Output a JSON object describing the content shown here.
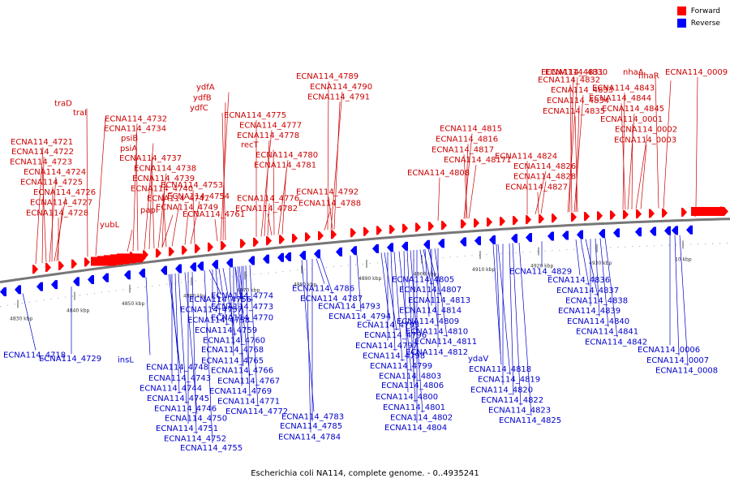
{
  "title": "Escherichia coli NA114, complete genome. - 0..4935241",
  "legend": {
    "forward": {
      "label": "Forward",
      "color": "#ff0000"
    },
    "reverse": {
      "label": "Reverse",
      "color": "#0000ff"
    }
  },
  "ticks": [
    "4830 kbp",
    "4840 kbp",
    "4850 kbp",
    "4860 kbp",
    "4870 kbp",
    "4880 kbp",
    "4890 kbp",
    "4900 kbp",
    "4910 kbp",
    "4920 kbp",
    "4930 kbp",
    "10 kbp"
  ],
  "forward_genes": [
    {
      "label": "ECNA114_4782",
      "gx": 335
    },
    {
      "label": "ECNA114_4776",
      "gx": 330
    },
    {
      "label": "ECNA114_4747",
      "gx": 212
    },
    {
      "label": "ECNA114_4740",
      "gx": 205
    },
    {
      "label": "ECNA114_4739",
      "gx": 200
    },
    {
      "label": "ECNA114_4738",
      "gx": 195
    },
    {
      "label": "ECNA114_4737",
      "gx": 190
    },
    {
      "label": "psiA",
      "gx": 184
    },
    {
      "label": "psiB",
      "gx": 178
    },
    {
      "label": "ECNA114_4734",
      "gx": 170
    },
    {
      "label": "ECNA114_4732",
      "gx": 164
    },
    {
      "label": "traI",
      "gx": 118
    },
    {
      "label": "traD",
      "gx": 108
    },
    {
      "label": "yubL",
      "gx": 157
    },
    {
      "label": "papI",
      "gx": 200
    },
    {
      "label": "ECNA114_4728",
      "gx": 72
    },
    {
      "label": "ECNA114_4727",
      "gx": 70
    },
    {
      "label": "ECNA114_4726",
      "gx": 67
    },
    {
      "label": "ECNA114_4725",
      "gx": 64
    },
    {
      "label": "ECNA114_4724",
      "gx": 61
    },
    {
      "label": "ECNA114_4723",
      "gx": 57
    },
    {
      "label": "ECNA114_4722",
      "gx": 52
    },
    {
      "label": "ECNA114_4721",
      "gx": 44
    },
    {
      "label": "ydfC",
      "gx": 278
    },
    {
      "label": "ydfB",
      "gx": 275
    },
    {
      "label": "ydfA",
      "gx": 272
    },
    {
      "label": "ECNA114_4761",
      "gx": 268
    },
    {
      "label": "ECNA114_4749",
      "gx": 228
    },
    {
      "label": "ECNA114_4754",
      "gx": 235
    },
    {
      "label": "ECNA114_4753",
      "gx": 240
    },
    {
      "label": "ECNA114_4781",
      "gx": 348
    },
    {
      "label": "ECNA114_4780",
      "gx": 343
    },
    {
      "label": "recT",
      "gx": 338
    },
    {
      "label": "ECNA114_4778",
      "gx": 326
    },
    {
      "label": "ECNA114_4777",
      "gx": 322
    },
    {
      "label": "ECNA114_4775",
      "gx": 316
    },
    {
      "label": "ECNA114_4791",
      "gx": 412
    },
    {
      "label": "ECNA114_4790",
      "gx": 408
    },
    {
      "label": "ECNA114_4789",
      "gx": 404
    },
    {
      "label": "ECNA114_4788",
      "gx": 400
    },
    {
      "label": "ECNA114_4792",
      "gx": 410
    },
    {
      "label": "ECNA114_4808",
      "gx": 540
    },
    {
      "label": "ECNA114_48171",
      "gx": 578
    },
    {
      "label": "ECNA114_4817",
      "gx": 576
    },
    {
      "label": "ECNA114_4816",
      "gx": 574
    },
    {
      "label": "ECNA114_4815",
      "gx": 572
    },
    {
      "label": "ECNA114_4835",
      "gx": 712
    },
    {
      "label": "ECNA114_4834",
      "gx": 710
    },
    {
      "label": "ECNA114_4833",
      "gx": 708
    },
    {
      "label": "ECNA114_4832",
      "gx": 705
    },
    {
      "label": "ECNA114_4831",
      "gx": 702
    },
    {
      "label": "ECNA114_4830",
      "gx": 700
    },
    {
      "label": "ECNA114_4827",
      "gx": 664
    },
    {
      "label": "ECNA114_4828",
      "gx": 667
    },
    {
      "label": "ECNA114_4826",
      "gx": 660
    },
    {
      "label": "ECNA114_4824",
      "gx": 650
    },
    {
      "label": "ECNA114_0003",
      "gx": 790
    },
    {
      "label": "ECNA114_0002",
      "gx": 784
    },
    {
      "label": "ECNA114_0001",
      "gx": 779
    },
    {
      "label": "ECNA114_4845",
      "gx": 774
    },
    {
      "label": "ECNA114_4844",
      "gx": 771
    },
    {
      "label": "ECNA114_4843",
      "gx": 768
    },
    {
      "label": "nhaR",
      "gx": 818
    },
    {
      "label": "nhaA",
      "gx": 812
    },
    {
      "label": "ECNA114_0009",
      "gx": 858
    }
  ],
  "reverse_genes": [
    {
      "label": "ECNA114_4774",
      "gx": 300
    },
    {
      "label": "ECNA114_4773",
      "gx": 295
    },
    {
      "label": "ECNA114_4770",
      "gx": 290
    },
    {
      "label": "ECNA114_4718",
      "gx": 28
    },
    {
      "label": "ECNA114_4729",
      "gx": 88
    },
    {
      "label": "insL",
      "gx": 180
    },
    {
      "label": "ECNA114_4748",
      "gx": 210
    },
    {
      "label": "ECNA114_4743",
      "gx": 208
    },
    {
      "label": "ECNA114_4744",
      "gx": 212
    },
    {
      "label": "ECNA114_4745",
      "gx": 216
    },
    {
      "label": "ECNA114_4746",
      "gx": 220
    },
    {
      "label": "ECNA114_4750",
      "gx": 228
    },
    {
      "label": "ECNA114_4751",
      "gx": 232
    },
    {
      "label": "ECNA114_4752",
      "gx": 237
    },
    {
      "label": "ECNA114_4755",
      "gx": 252
    },
    {
      "label": "ECNA114_4756",
      "gx": 258
    },
    {
      "label": "ECNA114_4757",
      "gx": 262
    },
    {
      "label": "ECNA114_4758",
      "gx": 266
    },
    {
      "label": "ECNA114_4759",
      "gx": 270
    },
    {
      "label": "ECNA114_4760",
      "gx": 275
    },
    {
      "label": "ECNA114_4768",
      "gx": 288
    },
    {
      "label": "ECNA114_4765",
      "gx": 283
    },
    {
      "label": "ECNA114_4766",
      "gx": 290
    },
    {
      "label": "ECNA114_4767",
      "gx": 293
    },
    {
      "label": "ECNA114_4769",
      "gx": 298
    },
    {
      "label": "ECNA114_4771",
      "gx": 303
    },
    {
      "label": "ECNA114_4772",
      "gx": 308
    },
    {
      "label": "ECNA114_4783",
      "gx": 372
    },
    {
      "label": "ECNA114_4785",
      "gx": 385
    },
    {
      "label": "ECNA114_4784",
      "gx": 378
    },
    {
      "label": "ECNA114_4786",
      "gx": 390
    },
    {
      "label": "ECNA114_4787",
      "gx": 395
    },
    {
      "label": "ECNA114_4793",
      "gx": 432
    },
    {
      "label": "ECNA114_4794",
      "gx": 440
    },
    {
      "label": "ECNA114_4795",
      "gx": 470
    },
    {
      "label": "ECNA114_4796",
      "gx": 474
    },
    {
      "label": "ECNA114_4797",
      "gx": 478
    },
    {
      "label": "ECNA114_4798",
      "gx": 482
    },
    {
      "label": "ECNA114_4799",
      "gx": 486
    },
    {
      "label": "ECNA114_4803",
      "gx": 492
    },
    {
      "label": "ECNA114_4806",
      "gx": 510
    },
    {
      "label": "ECNA114_4800",
      "gx": 498
    },
    {
      "label": "ECNA114_4801",
      "gx": 502
    },
    {
      "label": "ECNA114_4802",
      "gx": 506
    },
    {
      "label": "ECNA114_4804",
      "gx": 514
    },
    {
      "label": "ECNA114_4805",
      "gx": 518
    },
    {
      "label": "ECNA114_4807",
      "gx": 522
    },
    {
      "label": "ECNA114_4813",
      "gx": 528
    },
    {
      "label": "ECNA114_4814",
      "gx": 532
    },
    {
      "label": "ECNA114_4809",
      "gx": 524
    },
    {
      "label": "ECNA114_4810",
      "gx": 530
    },
    {
      "label": "ECNA114_4811",
      "gx": 536
    },
    {
      "label": "ECNA114_4812",
      "gx": 540
    },
    {
      "label": "ydaV",
      "gx": 612
    },
    {
      "label": "ECNA114_4818",
      "gx": 608
    },
    {
      "label": "ECNA114_4819",
      "gx": 614
    },
    {
      "label": "ECNA114_4820",
      "gx": 620
    },
    {
      "label": "ECNA114_4822",
      "gx": 628
    },
    {
      "label": "ECNA114_4823",
      "gx": 632
    },
    {
      "label": "ECNA114_4825",
      "gx": 640
    },
    {
      "label": "ECNA114_4829",
      "gx": 668
    },
    {
      "label": "ECNA114_4836",
      "gx": 710
    },
    {
      "label": "ECNA114_4837",
      "gx": 716
    },
    {
      "label": "ECNA114_4838",
      "gx": 722
    },
    {
      "label": "ECNA114_4839",
      "gx": 728
    },
    {
      "label": "ECNA114_4840",
      "gx": 734
    },
    {
      "label": "ECNA114_4841",
      "gx": 740
    },
    {
      "label": "ECNA114_4842",
      "gx": 746
    },
    {
      "label": "ECNA114_0006",
      "gx": 826
    },
    {
      "label": "ECNA114_0007",
      "gx": 832
    },
    {
      "label": "ECNA114_0008",
      "gx": 838
    }
  ]
}
